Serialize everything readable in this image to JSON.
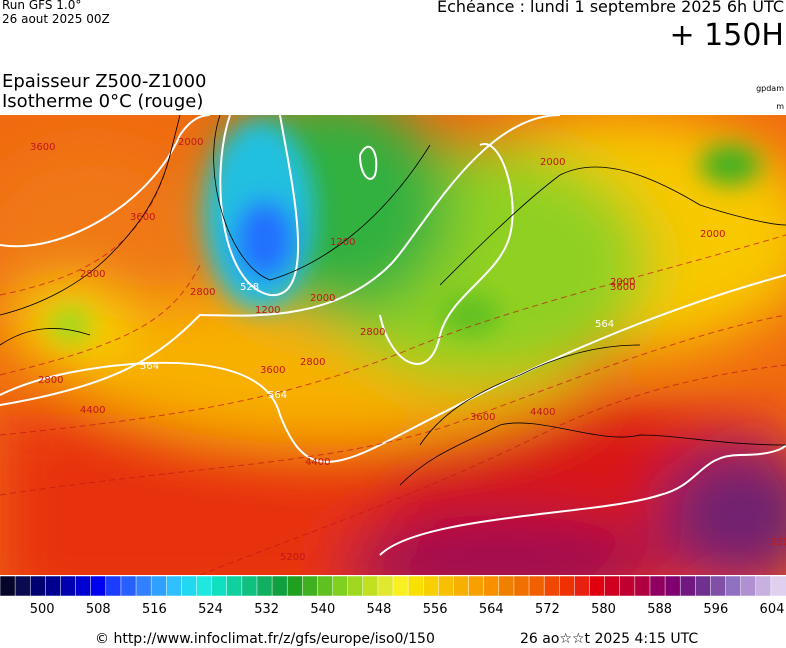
{
  "header": {
    "run": "Run GFS 1.0°",
    "run_date": "26 aout 2025 00Z",
    "valid": "Echéance : lundi 1 septembre 2025 6h UTC",
    "lead": "+ 150H",
    "title1": "Epaisseur Z500-Z1000",
    "title2": "Isotherme 0°C (rouge)",
    "unit1": "gpdam",
    "unit2": "m"
  },
  "map": {
    "contour_labels": [
      "3600",
      "2000",
      "3600",
      "2800",
      "528",
      "1200",
      "1200",
      "2000",
      "2800",
      "2800",
      "2000",
      "2000",
      "2000",
      "3600",
      "564",
      "3600",
      "2800",
      "564",
      "4400",
      "4400",
      "3600",
      "564",
      "2800",
      "4400",
      "5200",
      "5200"
    ]
  },
  "colorbar": {
    "lim": [
      494,
      606
    ],
    "ticks": [
      500,
      508,
      516,
      524,
      532,
      540,
      548,
      556,
      564,
      572,
      580,
      588,
      596,
      604
    ],
    "colors": [
      "#05052a",
      "#0a0a50",
      "#000070",
      "#000090",
      "#0000b0",
      "#0000d0",
      "#0000f0",
      "#1a3cff",
      "#2860ff",
      "#3080ff",
      "#30a0ff",
      "#30c0ff",
      "#20d8f0",
      "#20e8e0",
      "#10e0c0",
      "#10d0a0",
      "#10c080",
      "#10b060",
      "#10a040",
      "#20a020",
      "#40b020",
      "#60c020",
      "#80d020",
      "#a0d820",
      "#c0e020",
      "#e0e830",
      "#f8f020",
      "#f8e000",
      "#f8d000",
      "#f8c000",
      "#f8b000",
      "#f8a000",
      "#f89000",
      "#f08000",
      "#f07000",
      "#f06000",
      "#f04800",
      "#f03000",
      "#e82010",
      "#e00010",
      "#d00020",
      "#c00030",
      "#b00040",
      "#900060",
      "#800070",
      "#701880",
      "#703090",
      "#8050a8",
      "#9070c0",
      "#b090d0",
      "#c8b0e0",
      "#e0d0f0"
    ]
  },
  "footer": {
    "source": "© http://www.infoclimat.fr/z/gfs/europe/iso0/150",
    "generated": "26 ao☆☆t 2025  4:15 UTC"
  }
}
